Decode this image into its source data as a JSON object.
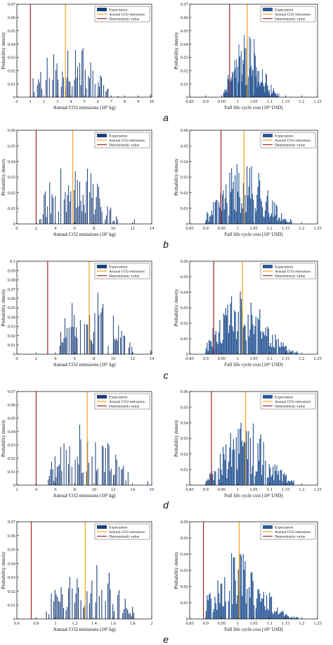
{
  "colors": {
    "bar_left": "#1a3e7a",
    "bar_right": "#2d5a96",
    "expectation": "#f2a31a",
    "deterministic": "#a3242a"
  },
  "legend": [
    "Expectation",
    "Annual CO2 emissions",
    "Deterministic value"
  ],
  "row_labels": [
    "a",
    "b",
    "c",
    "d",
    "e"
  ],
  "chart_data": [
    {
      "type": "bar",
      "panel": "a-left",
      "xlabel": "Annual CO2 emissions (10³ kg)",
      "ylabel": "Probability density",
      "xlim": [
        0,
        10
      ],
      "ylim": [
        0,
        0.07
      ],
      "xticks": [
        0,
        1,
        2,
        3,
        4,
        5,
        6,
        7,
        8,
        9,
        10
      ],
      "yticks": [
        0,
        0.01,
        0.02,
        0.03,
        0.04,
        0.05,
        0.06,
        0.07
      ],
      "ytick_labels": [
        "0",
        "0.01",
        "0.02",
        "0.03",
        "0.04",
        "0.05",
        "0.06",
        "0.07"
      ],
      "expectation": 3.6,
      "deterministic": 1.0,
      "bar_range": [
        1.0,
        6.8
      ],
      "seed": 11,
      "outliers": [
        [
          7.5,
          0.001
        ],
        [
          9.9,
          0.002
        ]
      ]
    },
    {
      "type": "bar",
      "panel": "a-right",
      "xlabel": "Full life cycle cost (10⁵ USD)",
      "ylabel": "Probability density",
      "xlim": [
        0.85,
        1.25
      ],
      "ylim": [
        0,
        0.07
      ],
      "xticks": [
        0.85,
        0.9,
        0.95,
        1,
        1.05,
        1.1,
        1.15,
        1.2,
        1.25
      ],
      "yticks": [
        0,
        0.01,
        0.02,
        0.03,
        0.04,
        0.05,
        0.06,
        0.07
      ],
      "xtick_labels": [
        "0.85",
        "0.9",
        "0.95",
        "1",
        "1.05",
        "1.1",
        "1.15",
        "1.2",
        "1.25"
      ],
      "ytick_labels": [
        "0",
        "0.01",
        "0.02",
        "0.03",
        "0.04",
        "0.05",
        "0.06",
        "0.07"
      ],
      "expectation": 1.03,
      "deterministic": 0.975,
      "bar_range": [
        0.955,
        1.13
      ],
      "seed": 21,
      "outliers": []
    },
    {
      "type": "bar",
      "panel": "b-left",
      "xlabel": "Annual CO2 emissions (10³ kg)",
      "ylabel": "Probability density",
      "xlim": [
        0,
        14
      ],
      "ylim": [
        0,
        0.06
      ],
      "xticks": [
        0,
        2,
        4,
        6,
        8,
        10,
        12,
        14
      ],
      "yticks": [
        0,
        0.01,
        0.02,
        0.03,
        0.04,
        0.05,
        0.06
      ],
      "ytick_labels": [
        "0",
        "0.01",
        "0.02",
        "0.03",
        "0.04",
        "0.05",
        "0.06"
      ],
      "expectation": 5.8,
      "deterministic": 2.0,
      "bar_range": [
        2.2,
        10.5
      ],
      "seed": 31,
      "outliers": [
        [
          12.2,
          0.003
        ]
      ]
    },
    {
      "type": "bar",
      "panel": "b-right",
      "xlabel": "Full life cycle cost (10⁵ USD)",
      "ylabel": "Probability density",
      "xlim": [
        0.85,
        1.25
      ],
      "ylim": [
        0,
        0.06
      ],
      "xticks": [
        0.85,
        0.9,
        0.95,
        1,
        1.05,
        1.1,
        1.15,
        1.2,
        1.25
      ],
      "yticks": [
        0,
        0.01,
        0.02,
        0.03,
        0.04,
        0.05,
        0.06
      ],
      "xtick_labels": [
        "0.85",
        "0.9",
        "0.95",
        "1",
        "1.05",
        "1.1",
        "1.15",
        "1.2",
        "1.25"
      ],
      "ytick_labels": [
        "0",
        "0.01",
        "0.02",
        "0.03",
        "0.04",
        "0.05",
        "0.06"
      ],
      "expectation": 1.02,
      "deterministic": 0.948,
      "bar_range": [
        0.9,
        1.17
      ],
      "seed": 41,
      "outliers": []
    },
    {
      "type": "bar",
      "panel": "c-left",
      "xlabel": "Annual CO2 emissions (10³ kg)",
      "ylabel": "Probability density",
      "xlim": [
        0,
        14
      ],
      "ylim": [
        0,
        0.1
      ],
      "xticks": [
        0,
        2,
        4,
        6,
        8,
        10,
        12,
        14
      ],
      "yticks": [
        0,
        0.01,
        0.02,
        0.03,
        0.04,
        0.05,
        0.06,
        0.07,
        0.08,
        0.09,
        0.1
      ],
      "ytick_labels": [
        "0",
        "0.01",
        "0.02",
        "0.03",
        "0.04",
        "0.05",
        "0.06",
        "0.07",
        "0.08",
        "0.09",
        "0.1"
      ],
      "expectation": 7.5,
      "deterministic": 3.2,
      "bar_range": [
        4.4,
        12.1
      ],
      "seed": 51,
      "outliers": [
        [
          13.9,
          0.004
        ]
      ]
    },
    {
      "type": "bar",
      "panel": "c-right",
      "xlabel": "Full life cycle cost (10⁵ USD)",
      "ylabel": "Probability density",
      "xlim": [
        0.85,
        1.25
      ],
      "ylim": [
        0,
        0.06
      ],
      "xticks": [
        0.85,
        0.9,
        0.95,
        1,
        1.05,
        1.1,
        1.15,
        1.2,
        1.25
      ],
      "yticks": [
        0,
        0.01,
        0.02,
        0.03,
        0.04,
        0.05,
        0.06
      ],
      "xtick_labels": [
        "0.85",
        "0.9",
        "0.95",
        "1",
        "1.05",
        "1.1",
        "1.15",
        "1.2",
        "1.25"
      ],
      "ytick_labels": [
        "0",
        "0.01",
        "0.02",
        "0.03",
        "0.04",
        "0.05",
        "0.06"
      ],
      "expectation": 1.015,
      "deterministic": 0.925,
      "bar_range": [
        0.9,
        1.19
      ],
      "seed": 61,
      "outliers": []
    },
    {
      "type": "bar",
      "panel": "d-left",
      "xlabel": "Annual CO2 emissions (10³ kg)",
      "ylabel": "Probability density",
      "xlim": [
        2,
        16
      ],
      "ylim": [
        0,
        0.07
      ],
      "xticks": [
        2,
        4,
        6,
        8,
        10,
        12,
        14,
        16
      ],
      "yticks": [
        0,
        0.01,
        0.02,
        0.03,
        0.04,
        0.05,
        0.06,
        0.07
      ],
      "ytick_labels": [
        "0",
        "0.01",
        "0.02",
        "0.03",
        "0.04",
        "0.05",
        "0.06",
        "0.07"
      ],
      "expectation": 9.3,
      "deterministic": 4.0,
      "bar_range": [
        5.2,
        13.6
      ],
      "seed": 71,
      "outliers": [
        [
          15.6,
          0.003
        ]
      ]
    },
    {
      "type": "bar",
      "panel": "d-right",
      "xlabel": "Full life cycle cost (10⁵ USD)",
      "ylabel": "Probability density",
      "xlim": [
        0.85,
        1.25
      ],
      "ylim": [
        0,
        0.06
      ],
      "xticks": [
        0.85,
        0.9,
        0.95,
        1,
        1.05,
        1.1,
        1.15,
        1.2,
        1.25
      ],
      "yticks": [
        0,
        0.01,
        0.02,
        0.03,
        0.04,
        0.05,
        0.06
      ],
      "xtick_labels": [
        "0.85",
        "0.9",
        "0.95",
        "1",
        "1.05",
        "1.1",
        "1.15",
        "1.2",
        "1.25"
      ],
      "ytick_labels": [
        "0",
        "0.01",
        "0.02",
        "0.03",
        "0.04",
        "0.05",
        "0.06"
      ],
      "expectation": 1.025,
      "deterministic": 0.918,
      "bar_range": [
        0.9,
        1.18
      ],
      "seed": 81,
      "outliers": []
    },
    {
      "type": "bar",
      "panel": "e-left",
      "xlabel": "Annual CO2 emissions (10³ kg)",
      "ylabel": "Probability density",
      "xlim": [
        0.6,
        2
      ],
      "ylim": [
        0,
        0.07
      ],
      "xticks": [
        0.6,
        0.8,
        1,
        1.2,
        1.4,
        1.6,
        1.8,
        2
      ],
      "yticks": [
        0,
        0.01,
        0.02,
        0.03,
        0.04,
        0.05,
        0.06,
        0.07
      ],
      "xtick_labels": [
        "0.6",
        "0.8",
        "1",
        "1.2",
        "1.4",
        "1.6",
        "1.8",
        "2"
      ],
      "ytick_labels": [
        "0",
        "0.01",
        "0.02",
        "0.03",
        "0.04",
        "0.05",
        "0.06",
        "0.07"
      ],
      "expectation": 1.31,
      "deterministic": 0.75,
      "bar_range": [
        0.9,
        1.82
      ],
      "seed": 91,
      "outliers": []
    },
    {
      "type": "bar",
      "panel": "e-right",
      "xlabel": "Full life cycle cost (10⁵ USD)",
      "ylabel": "Probability density",
      "xlim": [
        0.85,
        1.25
      ],
      "ylim": [
        0,
        0.06
      ],
      "xticks": [
        0.85,
        0.9,
        0.95,
        1,
        1.05,
        1.1,
        1.15,
        1.2,
        1.25
      ],
      "yticks": [
        0,
        0.01,
        0.02,
        0.03,
        0.04,
        0.05,
        0.06
      ],
      "xtick_labels": [
        "0.85",
        "0.9",
        "0.95",
        "1",
        "1.05",
        "1.1",
        "1.15",
        "1.2",
        "1.25"
      ],
      "ytick_labels": [
        "0",
        "0.01",
        "0.02",
        "0.03",
        "0.04",
        "0.05",
        "0.06"
      ],
      "expectation": 1.005,
      "deterministic": 0.893,
      "bar_range": [
        0.9,
        1.19
      ],
      "seed": 101,
      "outliers": []
    }
  ]
}
